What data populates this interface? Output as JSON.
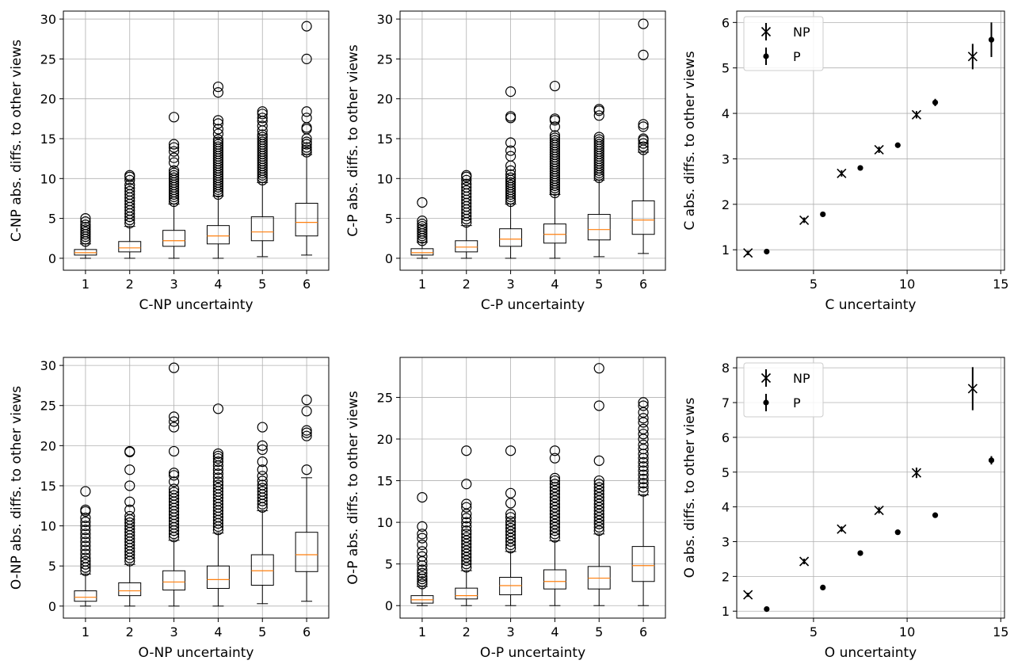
{
  "chart_data": [
    {
      "type": "box",
      "xlabel": "C-NP uncertainty",
      "ylabel": "C-NP abs. diffs. to other views",
      "ylim": [
        -1.5,
        31
      ],
      "yticks": [
        0,
        5,
        10,
        15,
        20,
        25,
        30
      ],
      "categories": [
        "1",
        "2",
        "3",
        "4",
        "5",
        "6"
      ],
      "grid": true,
      "boxes": [
        {
          "q1": 0.4,
          "median": 0.7,
          "q3": 1.1,
          "whislo": 0.0,
          "whishi": 1.8,
          "fliers": [
            2.1,
            2.4,
            2.7,
            3.0,
            3.3,
            3.6,
            3.9,
            4.2,
            4.6,
            5.0
          ]
        },
        {
          "q1": 0.8,
          "median": 1.3,
          "q3": 2.1,
          "whislo": 0.0,
          "whishi": 4.0,
          "fliers": [
            4.4,
            4.8,
            5.2,
            5.6,
            6.0,
            6.4,
            6.8,
            7.2,
            7.6,
            8.0,
            8.4,
            8.8,
            9.2,
            9.8,
            10.2,
            10.4
          ]
        },
        {
          "q1": 1.5,
          "median": 2.2,
          "q3": 3.5,
          "whislo": 0.0,
          "whishi": 6.8,
          "fliers": [
            7.1,
            7.4,
            7.7,
            8.0,
            8.3,
            8.6,
            8.9,
            9.2,
            9.5,
            9.8,
            10.1,
            10.4,
            10.7,
            11.0,
            12.0,
            12.6,
            13.4,
            13.9,
            14.3,
            17.7
          ]
        },
        {
          "q1": 1.8,
          "median": 2.8,
          "q3": 4.1,
          "whislo": 0.0,
          "whishi": 7.8,
          "fliers": [
            8.0,
            8.3,
            8.6,
            8.9,
            9.2,
            9.5,
            9.8,
            10.1,
            10.4,
            10.7,
            11.0,
            11.3,
            11.6,
            11.9,
            12.2,
            12.5,
            12.8,
            13.1,
            13.4,
            13.7,
            14.0,
            14.3,
            14.6,
            14.9,
            15.6,
            16.2,
            16.9,
            17.3,
            20.8,
            21.5
          ]
        },
        {
          "q1": 2.2,
          "median": 3.3,
          "q3": 5.2,
          "whislo": 0.2,
          "whishi": 9.5,
          "fliers": [
            9.8,
            10.1,
            10.4,
            10.7,
            11.0,
            11.3,
            11.6,
            11.9,
            12.2,
            12.5,
            12.8,
            13.1,
            13.4,
            13.7,
            14.0,
            14.3,
            14.6,
            14.9,
            15.2,
            15.5,
            16.0,
            16.6,
            17.2,
            17.6,
            18.1,
            18.4
          ]
        },
        {
          "q1": 2.8,
          "median": 4.5,
          "q3": 6.9,
          "whislo": 0.4,
          "whishi": 13.0,
          "fliers": [
            13.3,
            13.6,
            13.9,
            14.3,
            14.6,
            15.0,
            16.2,
            16.4,
            17.6,
            18.4,
            25.0,
            29.1
          ]
        }
      ]
    },
    {
      "type": "box",
      "xlabel": "C-P uncertainty",
      "ylabel": "C-P abs. diffs. to other views",
      "ylim": [
        -1.5,
        31
      ],
      "yticks": [
        0,
        5,
        10,
        15,
        20,
        25,
        30
      ],
      "categories": [
        "1",
        "2",
        "3",
        "4",
        "5",
        "6"
      ],
      "grid": true,
      "boxes": [
        {
          "q1": 0.4,
          "median": 0.7,
          "q3": 1.2,
          "whislo": 0.0,
          "whishi": 2.0,
          "fliers": [
            2.2,
            2.5,
            2.8,
            3.1,
            3.4,
            3.7,
            4.0,
            4.3,
            4.7,
            7.0
          ]
        },
        {
          "q1": 0.8,
          "median": 1.4,
          "q3": 2.2,
          "whislo": 0.0,
          "whishi": 4.1,
          "fliers": [
            4.5,
            4.9,
            5.3,
            5.7,
            6.1,
            6.5,
            6.9,
            7.3,
            7.7,
            8.1,
            8.5,
            8.9,
            9.3,
            9.8,
            10.2,
            10.4
          ]
        },
        {
          "q1": 1.5,
          "median": 2.4,
          "q3": 3.7,
          "whislo": 0.0,
          "whishi": 6.8,
          "fliers": [
            7.1,
            7.4,
            7.7,
            8.0,
            8.3,
            8.6,
            8.9,
            9.2,
            9.5,
            9.8,
            10.1,
            10.5,
            11.0,
            11.6,
            12.8,
            13.5,
            14.5,
            17.6,
            17.8,
            20.9
          ]
        },
        {
          "q1": 1.9,
          "median": 3.0,
          "q3": 4.3,
          "whislo": 0.0,
          "whishi": 8.0,
          "fliers": [
            8.2,
            8.5,
            8.8,
            9.1,
            9.4,
            9.7,
            10.0,
            10.3,
            10.6,
            10.9,
            11.2,
            11.5,
            11.8,
            12.1,
            12.4,
            12.7,
            13.0,
            13.3,
            13.6,
            13.9,
            14.2,
            14.5,
            14.8,
            15.1,
            15.4,
            16.5,
            17.3,
            17.5,
            21.6
          ]
        },
        {
          "q1": 2.3,
          "median": 3.6,
          "q3": 5.5,
          "whislo": 0.2,
          "whishi": 9.8,
          "fliers": [
            10.1,
            10.4,
            10.7,
            11.0,
            11.3,
            11.6,
            11.9,
            12.2,
            12.5,
            12.8,
            13.1,
            13.4,
            13.7,
            14.0,
            14.3,
            14.6,
            14.9,
            15.2,
            17.9,
            18.5,
            18.7
          ]
        },
        {
          "q1": 3.0,
          "median": 4.8,
          "q3": 7.2,
          "whislo": 0.6,
          "whishi": 13.3,
          "fliers": [
            13.6,
            14.0,
            14.4,
            14.8,
            15.0,
            16.5,
            16.8,
            25.5,
            29.4
          ]
        }
      ]
    },
    {
      "type": "scatter",
      "xlabel": "C uncertainty",
      "ylabel": "C abs. diffs. to other views",
      "xlim": [
        0.9,
        15.2
      ],
      "ylim": [
        0.55,
        6.25
      ],
      "xticks": [
        5,
        10,
        15
      ],
      "yticks": [
        1,
        2,
        3,
        4,
        5,
        6
      ],
      "grid": true,
      "legend": "top-left",
      "series": [
        {
          "name": "NP",
          "marker": "x",
          "x": [
            1.5,
            4.5,
            6.5,
            8.5,
            10.5,
            13.5
          ],
          "y": [
            0.93,
            1.65,
            2.68,
            3.2,
            3.97,
            5.25
          ],
          "err": [
            0.05,
            0.06,
            0.07,
            0.07,
            0.08,
            0.28
          ]
        },
        {
          "name": "P",
          "marker": "o",
          "x": [
            2.5,
            5.5,
            7.5,
            9.5,
            11.5,
            14.5
          ],
          "y": [
            0.96,
            1.78,
            2.8,
            3.3,
            4.24,
            5.62
          ],
          "err": [
            0.03,
            0.04,
            0.04,
            0.04,
            0.08,
            0.38
          ]
        }
      ]
    },
    {
      "type": "box",
      "xlabel": "O-NP uncertainty",
      "ylabel": "O-NP abs. diffs. to other views",
      "ylim": [
        -1.5,
        31
      ],
      "yticks": [
        0,
        5,
        10,
        15,
        20,
        25,
        30
      ],
      "categories": [
        "1",
        "2",
        "3",
        "4",
        "5",
        "6"
      ],
      "grid": true,
      "boxes": [
        {
          "q1": 0.6,
          "median": 1.1,
          "q3": 1.9,
          "whislo": 0.0,
          "whishi": 4.0,
          "fliers": [
            4.4,
            4.8,
            5.2,
            5.6,
            6.0,
            6.5,
            7.0,
            7.5,
            8.0,
            8.5,
            9.0,
            9.5,
            10.0,
            10.5,
            11.0,
            11.8,
            12.0,
            14.3
          ]
        },
        {
          "q1": 1.3,
          "median": 1.9,
          "q3": 2.9,
          "whislo": 0.0,
          "whishi": 5.2,
          "fliers": [
            5.6,
            6.0,
            6.4,
            6.8,
            7.2,
            7.6,
            8.0,
            8.4,
            8.8,
            9.2,
            9.6,
            10.0,
            10.4,
            10.8,
            11.2,
            12.0,
            13.0,
            15.0,
            17.0,
            19.2,
            19.3
          ]
        },
        {
          "q1": 2.0,
          "median": 3.0,
          "q3": 4.4,
          "whislo": 0.0,
          "whishi": 8.2,
          "fliers": [
            8.6,
            9.0,
            9.4,
            9.8,
            10.2,
            10.6,
            11.0,
            11.4,
            11.8,
            12.2,
            12.6,
            13.0,
            13.4,
            13.8,
            14.2,
            14.6,
            15.5,
            16.3,
            16.6,
            19.3,
            22.3,
            23.0,
            23.6,
            29.7
          ]
        },
        {
          "q1": 2.2,
          "median": 3.3,
          "q3": 5.0,
          "whislo": 0.0,
          "whishi": 9.1,
          "fliers": [
            9.5,
            9.9,
            10.3,
            10.7,
            11.1,
            11.5,
            11.9,
            12.3,
            12.7,
            13.1,
            13.5,
            13.9,
            14.3,
            14.7,
            15.1,
            15.5,
            16.0,
            16.5,
            17.0,
            17.5,
            18.0,
            18.4,
            18.7,
            19.0,
            24.6
          ]
        },
        {
          "q1": 2.6,
          "median": 4.4,
          "q3": 6.4,
          "whislo": 0.3,
          "whishi": 11.9,
          "fliers": [
            12.3,
            12.7,
            13.1,
            13.5,
            13.9,
            14.3,
            14.7,
            15.1,
            15.6,
            16.2,
            17.0,
            18.0,
            19.5,
            20.0,
            22.3
          ]
        },
        {
          "q1": 4.3,
          "median": 6.4,
          "q3": 9.2,
          "whislo": 0.6,
          "whishi": 16.0,
          "fliers": [
            17.0,
            21.2,
            21.6,
            21.9,
            24.3,
            25.7
          ]
        }
      ]
    },
    {
      "type": "box",
      "xlabel": "O-P uncertainty",
      "ylabel": "O-P abs. diffs. to other views",
      "ylim": [
        -1.5,
        29.8
      ],
      "yticks": [
        0,
        5,
        10,
        15,
        20,
        25
      ],
      "categories": [
        "1",
        "2",
        "3",
        "4",
        "5",
        "6"
      ],
      "grid": true,
      "boxes": [
        {
          "q1": 0.3,
          "median": 0.7,
          "q3": 1.2,
          "whislo": 0.0,
          "whishi": 2.3,
          "fliers": [
            2.6,
            2.9,
            3.2,
            3.5,
            3.9,
            4.3,
            4.8,
            5.3,
            5.9,
            6.5,
            7.3,
            8.1,
            8.6,
            9.5,
            13.0
          ]
        },
        {
          "q1": 0.8,
          "median": 1.2,
          "q3": 2.1,
          "whislo": 0.0,
          "whishi": 4.2,
          "fliers": [
            4.6,
            5.0,
            5.4,
            5.8,
            6.2,
            6.6,
            7.0,
            7.4,
            7.8,
            8.2,
            8.6,
            9.0,
            9.5,
            10.0,
            10.5,
            11.0,
            11.8,
            12.2,
            14.6,
            18.6
          ]
        },
        {
          "q1": 1.3,
          "median": 2.4,
          "q3": 3.4,
          "whislo": 0.0,
          "whishi": 6.5,
          "fliers": [
            6.9,
            7.3,
            7.7,
            8.1,
            8.5,
            8.9,
            9.3,
            9.7,
            10.1,
            10.6,
            11.0,
            12.3,
            13.5,
            18.6
          ]
        },
        {
          "q1": 2.0,
          "median": 2.9,
          "q3": 4.3,
          "whislo": 0.0,
          "whishi": 7.8,
          "fliers": [
            8.2,
            8.6,
            9.0,
            9.4,
            9.8,
            10.2,
            10.6,
            11.0,
            11.4,
            11.8,
            12.2,
            12.6,
            13.0,
            13.4,
            13.8,
            14.2,
            14.6,
            15.0,
            15.3,
            17.7,
            18.6
          ]
        },
        {
          "q1": 2.0,
          "median": 3.3,
          "q3": 4.7,
          "whislo": 0.0,
          "whishi": 8.6,
          "fliers": [
            9.0,
            9.4,
            9.8,
            10.2,
            10.6,
            11.0,
            11.4,
            11.8,
            12.2,
            12.6,
            13.0,
            13.4,
            13.8,
            14.2,
            14.6,
            15.0,
            17.4,
            24.0,
            28.5
          ]
        },
        {
          "q1": 2.9,
          "median": 4.8,
          "q3": 7.1,
          "whislo": 0.0,
          "whishi": 13.3,
          "fliers": [
            13.7,
            14.2,
            14.7,
            15.2,
            15.7,
            16.2,
            16.7,
            17.2,
            17.7,
            18.2,
            18.8,
            19.3,
            20.0,
            20.6,
            21.2,
            22.0,
            22.5,
            23.2,
            24.0,
            24.4
          ]
        }
      ]
    },
    {
      "type": "scatter",
      "xlabel": "O uncertainty",
      "ylabel": "O abs. diffs. to other views",
      "xlim": [
        0.9,
        15.2
      ],
      "ylim": [
        0.8,
        8.3
      ],
      "xticks": [
        5,
        10,
        15
      ],
      "yticks": [
        1,
        2,
        3,
        4,
        5,
        6,
        7,
        8
      ],
      "grid": true,
      "legend": "top-left",
      "series": [
        {
          "name": "NP",
          "marker": "x",
          "x": [
            1.5,
            4.5,
            6.5,
            8.5,
            10.5,
            13.5
          ],
          "y": [
            1.47,
            2.43,
            3.36,
            3.9,
            4.98,
            7.4
          ],
          "err": [
            0.06,
            0.08,
            0.08,
            0.09,
            0.15,
            0.62
          ]
        },
        {
          "name": "P",
          "marker": "o",
          "x": [
            2.5,
            5.5,
            7.5,
            9.5,
            11.5,
            14.5
          ],
          "y": [
            1.06,
            1.68,
            2.67,
            3.27,
            3.76,
            5.34
          ],
          "err": [
            0.04,
            0.04,
            0.05,
            0.05,
            0.06,
            0.12
          ]
        }
      ]
    }
  ]
}
